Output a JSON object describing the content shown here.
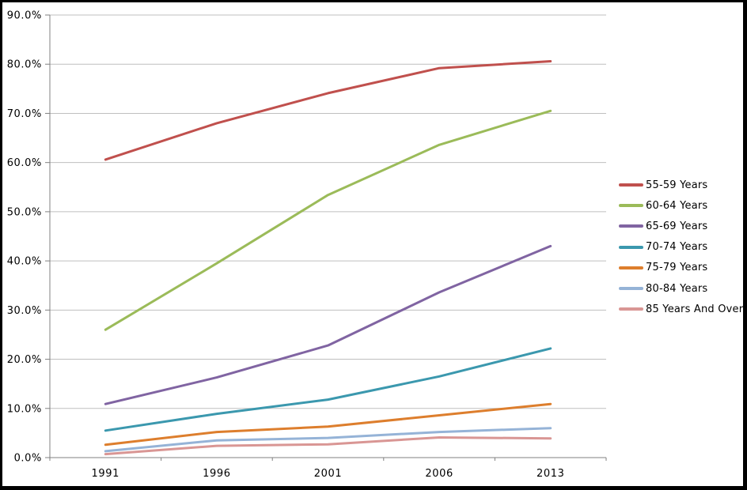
{
  "chart_data": {
    "type": "line",
    "x": [
      "1991",
      "1996",
      "2001",
      "2006",
      "2013"
    ],
    "series": [
      {
        "name": "55-59 Years",
        "color": "#C0504D",
        "values": [
          60.6,
          68.0,
          74.1,
          79.2,
          80.6
        ]
      },
      {
        "name": "60-64 Years",
        "color": "#9BBB59",
        "values": [
          26.0,
          39.5,
          53.4,
          63.6,
          70.5
        ]
      },
      {
        "name": "65-69 Years",
        "color": "#8064A2",
        "values": [
          10.9,
          16.3,
          22.8,
          33.6,
          43.0
        ]
      },
      {
        "name": "70-74 Years",
        "color": "#3B98AE",
        "values": [
          5.5,
          8.9,
          11.8,
          16.5,
          22.2
        ]
      },
      {
        "name": "75-79 Years",
        "color": "#DD7E2D",
        "values": [
          2.6,
          5.2,
          6.3,
          8.6,
          10.9
        ]
      },
      {
        "name": "80-84 Years",
        "color": "#95B3D7",
        "values": [
          1.3,
          3.5,
          4.0,
          5.2,
          6.0
        ]
      },
      {
        "name": "85 Years And Over",
        "color": "#D99694",
        "values": [
          0.7,
          2.4,
          2.7,
          4.1,
          3.9
        ]
      }
    ],
    "yticks": [
      "0.0%",
      "10.0%",
      "20.0%",
      "30.0%",
      "40.0%",
      "50.0%",
      "60.0%",
      "70.0%",
      "80.0%",
      "90.0%"
    ],
    "ylim": [
      0,
      90
    ],
    "ytick_step": 10,
    "grid": "horizontal",
    "legend_position": "right",
    "style": {
      "gridline_color": "#BFBFBF",
      "axis_color": "#808080",
      "line_width": 3,
      "background": "#FFFFFF",
      "frame_color": "#000000"
    }
  }
}
